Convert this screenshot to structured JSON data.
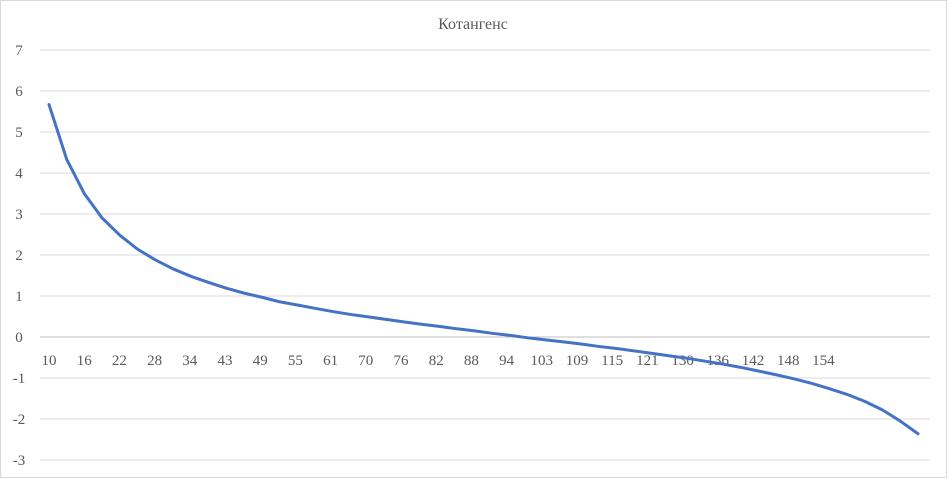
{
  "chart_data": {
    "type": "line",
    "title": "Котангенс",
    "xlabel": "",
    "ylabel": "",
    "ylim": [
      -3,
      7
    ],
    "y_ticks": [
      7,
      6,
      5,
      4,
      3,
      2,
      1,
      0,
      -1,
      -2,
      -3
    ],
    "grid": true,
    "legend": "none",
    "color": "#4472c4",
    "x_tick_labels": [
      "10",
      "16",
      "22",
      "28",
      "34",
      "43",
      "49",
      "55",
      "61",
      "70",
      "76",
      "82",
      "88",
      "94",
      "103",
      "109",
      "115",
      "121",
      "130",
      "136",
      "142",
      "148",
      "154"
    ],
    "series": [
      {
        "values": [
          5.67,
          4.33,
          3.49,
          2.9,
          2.48,
          2.14,
          1.88,
          1.66,
          1.48,
          1.33,
          1.19,
          1.07,
          0.97,
          0.86,
          0.78,
          0.7,
          0.62,
          0.55,
          0.49,
          0.43,
          0.37,
          0.31,
          0.26,
          0.2,
          0.15,
          0.09,
          0.04,
          -0.02,
          -0.07,
          -0.12,
          -0.17,
          -0.23,
          -0.28,
          -0.34,
          -0.4,
          -0.46,
          -0.52,
          -0.59,
          -0.66,
          -0.74,
          -0.83,
          -0.92,
          -1.02,
          -1.13,
          -1.26,
          -1.4,
          -1.57,
          -1.78,
          -2.05,
          -2.36
        ]
      }
    ]
  }
}
